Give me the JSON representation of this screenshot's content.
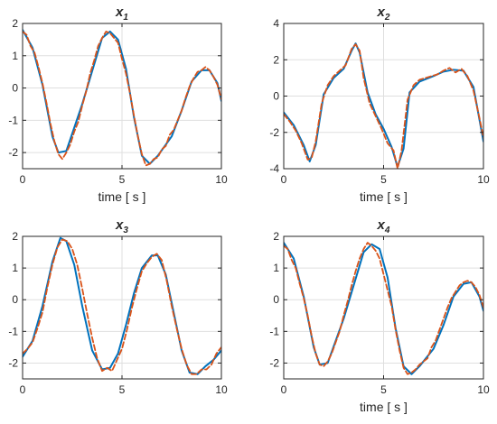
{
  "chart_data": [
    {
      "type": "line",
      "title": "x",
      "title_subscript": "1",
      "xlabel": "time [ s ]",
      "ylabel": "",
      "xlim": [
        0,
        10
      ],
      "ylim": [
        -2.5,
        2
      ],
      "xticks": [
        0,
        5,
        10
      ],
      "yticks": [
        -2,
        -1,
        0,
        1,
        2
      ],
      "grid": true,
      "series": [
        {
          "color": "#0072BD",
          "style": "solid",
          "x": [
            0,
            0.5,
            1,
            1.5,
            1.8,
            2.2,
            3,
            4,
            4.4,
            4.8,
            5.2,
            5.6,
            6.0,
            6.4,
            6.8,
            7.5,
            8,
            8.5,
            9,
            9.4,
            9.8,
            10
          ],
          "y": [
            1.8,
            1.25,
            0.1,
            -1.5,
            -2.0,
            -1.95,
            -0.5,
            1.55,
            1.75,
            1.5,
            0.6,
            -0.9,
            -2.1,
            -2.35,
            -2.1,
            -1.5,
            -0.7,
            0.2,
            0.55,
            0.55,
            0.15,
            -0.4
          ]
        },
        {
          "color": "#D95319",
          "style": "dashed",
          "x": [
            0,
            0.2,
            0.4,
            0.6,
            0.8,
            1.0,
            1.2,
            1.4,
            1.6,
            1.8,
            2.0,
            2.2,
            2.4,
            2.6,
            2.8,
            3.0,
            3.2,
            3.4,
            3.6,
            3.8,
            4.0,
            4.2,
            4.4,
            4.6,
            4.8,
            5.0,
            5.2,
            5.4,
            5.6,
            5.8,
            6.0,
            6.2,
            6.4,
            6.6,
            6.8,
            7.0,
            7.2,
            7.4,
            7.6,
            7.8,
            8.0,
            8.2,
            8.4,
            8.6,
            8.8,
            9.0,
            9.2,
            9.4,
            9.6,
            9.8,
            10
          ],
          "y": [
            1.75,
            1.65,
            1.3,
            1.1,
            0.65,
            0.15,
            -0.45,
            -1.1,
            -1.65,
            -2.05,
            -2.2,
            -2.0,
            -1.75,
            -1.35,
            -1.05,
            -0.55,
            -0.1,
            0.45,
            0.85,
            1.3,
            1.55,
            1.75,
            1.7,
            1.55,
            1.4,
            0.9,
            0.45,
            -0.15,
            -0.85,
            -1.5,
            -2.05,
            -2.4,
            -2.35,
            -2.2,
            -2.15,
            -1.9,
            -1.8,
            -1.45,
            -1.3,
            -1.0,
            -0.7,
            -0.3,
            0.05,
            0.3,
            0.5,
            0.55,
            0.65,
            0.55,
            0.35,
            0.1,
            -0.35
          ]
        }
      ]
    },
    {
      "type": "line",
      "title": "x",
      "title_subscript": "2",
      "xlabel": "time [ s ]",
      "ylabel": "",
      "xlim": [
        0,
        10
      ],
      "ylim": [
        -4,
        4
      ],
      "xticks": [
        0,
        5,
        10
      ],
      "yticks": [
        -4,
        -2,
        0,
        2,
        4
      ],
      "grid": true,
      "series": [
        {
          "color": "#0072BD",
          "style": "solid",
          "x": [
            0,
            0.5,
            1.0,
            1.3,
            1.6,
            2.0,
            2.5,
            3.0,
            3.4,
            3.6,
            3.8,
            4.2,
            4.6,
            5.0,
            5.4,
            5.7,
            6.0,
            6.3,
            6.8,
            7.5,
            8.0,
            8.5,
            9.0,
            9.5,
            10
          ],
          "y": [
            -0.9,
            -1.6,
            -2.7,
            -3.6,
            -2.7,
            0.1,
            1.0,
            1.5,
            2.5,
            2.9,
            2.4,
            0.2,
            -1.0,
            -1.8,
            -2.8,
            -3.9,
            -2.9,
            0.2,
            0.8,
            1.1,
            1.35,
            1.45,
            1.4,
            0.5,
            -2.5
          ]
        },
        {
          "color": "#D95319",
          "style": "dashed",
          "x": [
            0,
            0.3,
            0.6,
            0.9,
            1.2,
            1.4,
            1.6,
            1.9,
            2.2,
            2.5,
            2.8,
            3.1,
            3.4,
            3.6,
            3.8,
            4.0,
            4.3,
            4.6,
            4.9,
            5.2,
            5.5,
            5.7,
            5.9,
            6.2,
            6.5,
            6.8,
            7.1,
            7.4,
            7.7,
            8.0,
            8.3,
            8.6,
            8.9,
            9.2,
            9.5,
            9.8,
            10
          ],
          "y": [
            -1.0,
            -1.4,
            -1.9,
            -2.6,
            -3.5,
            -3.4,
            -2.5,
            -0.4,
            0.6,
            1.1,
            1.4,
            1.7,
            2.6,
            2.85,
            2.5,
            1.0,
            -0.4,
            -1.1,
            -1.8,
            -2.6,
            -3.0,
            -4.0,
            -3.0,
            -0.2,
            0.6,
            0.9,
            1.0,
            1.1,
            1.2,
            1.4,
            1.55,
            1.3,
            1.5,
            1.1,
            0.3,
            -1.2,
            -2.3
          ]
        }
      ]
    },
    {
      "type": "line",
      "title": "x",
      "title_subscript": "3",
      "xlabel": "",
      "ylabel": "",
      "xlim": [
        0,
        10
      ],
      "ylim": [
        -2.5,
        2
      ],
      "xticks": [
        0,
        5,
        10
      ],
      "yticks": [
        -2,
        -1,
        0,
        1,
        2
      ],
      "grid": true,
      "series": [
        {
          "color": "#0072BD",
          "style": "solid",
          "x": [
            0,
            0.5,
            1.0,
            1.5,
            1.9,
            2.2,
            2.6,
            3.0,
            3.5,
            4.0,
            4.4,
            4.8,
            5.2,
            5.6,
            6.0,
            6.5,
            6.8,
            7.2,
            7.6,
            8.0,
            8.4,
            8.8,
            9.2,
            9.6,
            10
          ],
          "y": [
            -1.8,
            -1.3,
            -0.2,
            1.2,
            1.95,
            1.85,
            1.1,
            -0.2,
            -1.6,
            -2.2,
            -2.15,
            -1.7,
            -0.8,
            0.2,
            1.0,
            1.4,
            1.4,
            0.8,
            -0.4,
            -1.6,
            -2.3,
            -2.35,
            -2.1,
            -1.9,
            -1.6
          ]
        },
        {
          "color": "#D95319",
          "style": "dashed",
          "x": [
            0,
            0.25,
            0.5,
            0.75,
            1.0,
            1.25,
            1.5,
            1.75,
            2.0,
            2.25,
            2.5,
            2.75,
            3.0,
            3.25,
            3.5,
            3.75,
            4.0,
            4.25,
            4.5,
            4.75,
            5.0,
            5.25,
            5.5,
            5.75,
            6.0,
            6.25,
            6.5,
            6.75,
            7.0,
            7.25,
            7.5,
            7.75,
            8.0,
            8.25,
            8.5,
            8.75,
            9.0,
            9.25,
            9.5,
            9.75,
            10
          ],
          "y": [
            -1.7,
            -1.55,
            -1.35,
            -0.9,
            -0.4,
            0.4,
            1.1,
            1.65,
            1.9,
            1.85,
            1.6,
            1.1,
            0.35,
            -0.45,
            -1.2,
            -1.85,
            -2.25,
            -2.15,
            -2.25,
            -1.9,
            -1.55,
            -0.95,
            -0.25,
            0.35,
            0.9,
            1.15,
            1.35,
            1.45,
            1.25,
            0.6,
            -0.2,
            -0.9,
            -1.55,
            -2.05,
            -2.35,
            -2.35,
            -2.2,
            -2.2,
            -2.05,
            -1.7,
            -1.5
          ]
        }
      ]
    },
    {
      "type": "line",
      "title": "x",
      "title_subscript": "4",
      "xlabel": "time [ s ]",
      "ylabel": "",
      "xlim": [
        0,
        10
      ],
      "ylim": [
        -2.5,
        2
      ],
      "xticks": [
        0,
        5,
        10
      ],
      "yticks": [
        -2,
        -1,
        0,
        1,
        2
      ],
      "grid": true,
      "series": [
        {
          "color": "#0072BD",
          "style": "solid",
          "x": [
            0,
            0.5,
            1.0,
            1.5,
            1.8,
            2.2,
            3.0,
            4.0,
            4.4,
            4.8,
            5.2,
            5.6,
            6.0,
            6.4,
            6.8,
            7.5,
            8.0,
            8.5,
            9.0,
            9.4,
            9.8,
            10
          ],
          "y": [
            1.8,
            1.3,
            0.1,
            -1.5,
            -2.05,
            -2.0,
            -0.6,
            1.5,
            1.75,
            1.6,
            0.7,
            -0.9,
            -2.1,
            -2.35,
            -2.1,
            -1.55,
            -0.8,
            0.1,
            0.5,
            0.55,
            0.1,
            -0.35
          ]
        },
        {
          "color": "#D95319",
          "style": "dashed",
          "x": [
            0,
            0.2,
            0.4,
            0.6,
            0.8,
            1.0,
            1.2,
            1.4,
            1.6,
            1.8,
            2.0,
            2.2,
            2.4,
            2.6,
            2.8,
            3.0,
            3.2,
            3.4,
            3.6,
            3.8,
            4.0,
            4.2,
            4.4,
            4.6,
            4.8,
            5.0,
            5.2,
            5.4,
            5.6,
            5.8,
            6.0,
            6.2,
            6.4,
            6.6,
            6.8,
            7.0,
            7.2,
            7.4,
            7.6,
            7.8,
            8.0,
            8.2,
            8.4,
            8.6,
            8.8,
            9.0,
            9.2,
            9.4,
            9.6,
            9.8,
            10
          ],
          "y": [
            1.7,
            1.6,
            1.25,
            1.0,
            0.5,
            0.05,
            -0.5,
            -1.15,
            -1.7,
            -2.05,
            -2.1,
            -1.95,
            -1.7,
            -1.35,
            -1.0,
            -0.5,
            -0.05,
            0.45,
            0.9,
            1.3,
            1.6,
            1.8,
            1.7,
            1.55,
            1.3,
            0.8,
            0.3,
            -0.2,
            -0.95,
            -1.6,
            -2.15,
            -2.35,
            -2.3,
            -2.2,
            -2.05,
            -1.95,
            -1.85,
            -1.5,
            -1.3,
            -0.95,
            -0.6,
            -0.25,
            0.05,
            0.25,
            0.45,
            0.55,
            0.6,
            0.55,
            0.4,
            0.15,
            -0.25
          ]
        }
      ]
    }
  ]
}
